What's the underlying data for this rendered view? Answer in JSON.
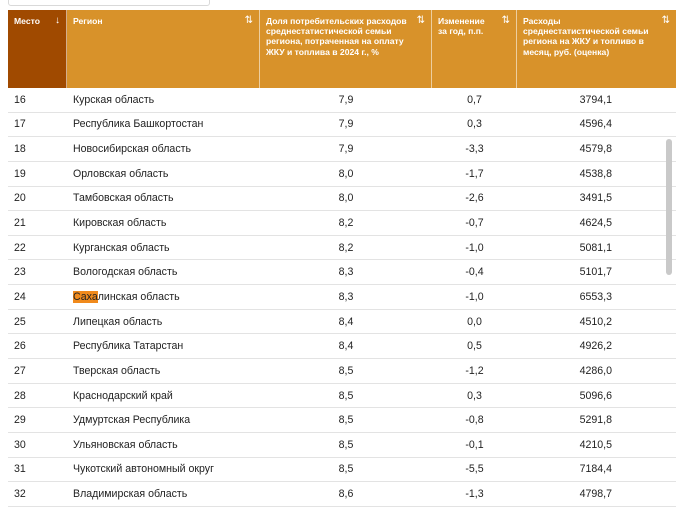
{
  "table": {
    "columns": [
      {
        "label": "Место",
        "sort_icon": "↓",
        "sorted": true
      },
      {
        "label": "Регион",
        "sort_icon": "⇅",
        "sorted": false
      },
      {
        "label": "Доля потребительских расходов среднестатистической семьи региона, потраченная на оплату ЖКУ и топлива в 2024 г., %",
        "sort_icon": "⇅",
        "sorted": false
      },
      {
        "label": "Изменение за год, п.п.",
        "sort_icon": "⇅",
        "sorted": false
      },
      {
        "label": "Расходы среднестатистической семьи региона на ЖКУ и топливо в месяц, руб. (оценка)",
        "sort_icon": "⇅",
        "sorted": false
      }
    ],
    "rows": [
      {
        "rank": "16",
        "region": "Курская область",
        "share": "7,9",
        "change": "0,7",
        "cost": "3794,1"
      },
      {
        "rank": "17",
        "region": "Республика Башкортостан",
        "share": "7,9",
        "change": "0,3",
        "cost": "4596,4"
      },
      {
        "rank": "18",
        "region": "Новосибирская область",
        "share": "7,9",
        "change": "-3,3",
        "cost": "4579,8"
      },
      {
        "rank": "19",
        "region": "Орловская область",
        "share": "8,0",
        "change": "-1,7",
        "cost": "4538,8"
      },
      {
        "rank": "20",
        "region": "Тамбовская область",
        "share": "8,0",
        "change": "-2,6",
        "cost": "3491,5"
      },
      {
        "rank": "21",
        "region": "Кировская область",
        "share": "8,2",
        "change": "-0,7",
        "cost": "4624,5"
      },
      {
        "rank": "22",
        "region": "Курганская область",
        "share": "8,2",
        "change": "-1,0",
        "cost": "5081,1"
      },
      {
        "rank": "23",
        "region": "Вологодская область",
        "share": "8,3",
        "change": "-0,4",
        "cost": "5101,7"
      },
      {
        "rank": "24",
        "region": "Сахалинская область",
        "share": "8,3",
        "change": "-1,0",
        "cost": "6553,3",
        "highlight": "Саха"
      },
      {
        "rank": "25",
        "region": "Липецкая область",
        "share": "8,4",
        "change": "0,0",
        "cost": "4510,2"
      },
      {
        "rank": "26",
        "region": "Республика Татарстан",
        "share": "8,4",
        "change": "0,5",
        "cost": "4926,2"
      },
      {
        "rank": "27",
        "region": "Тверская область",
        "share": "8,5",
        "change": "-1,2",
        "cost": "4286,0"
      },
      {
        "rank": "28",
        "region": "Краснодарский край",
        "share": "8,5",
        "change": "0,3",
        "cost": "5096,6"
      },
      {
        "rank": "29",
        "region": "Удмуртская Республика",
        "share": "8,5",
        "change": "-0,8",
        "cost": "5291,8"
      },
      {
        "rank": "30",
        "region": "Ульяновская область",
        "share": "8,5",
        "change": "-0,1",
        "cost": "4210,5"
      },
      {
        "rank": "31",
        "region": "Чукотский автономный округ",
        "share": "8,5",
        "change": "-5,5",
        "cost": "7184,4"
      },
      {
        "rank": "32",
        "region": "Владимирская область",
        "share": "8,6",
        "change": "-1,3",
        "cost": "4798,7"
      }
    ]
  },
  "colors": {
    "header_bg": "#d8922a",
    "header_sorted_bg": "#a04a00",
    "highlight": "#f08a1c"
  }
}
